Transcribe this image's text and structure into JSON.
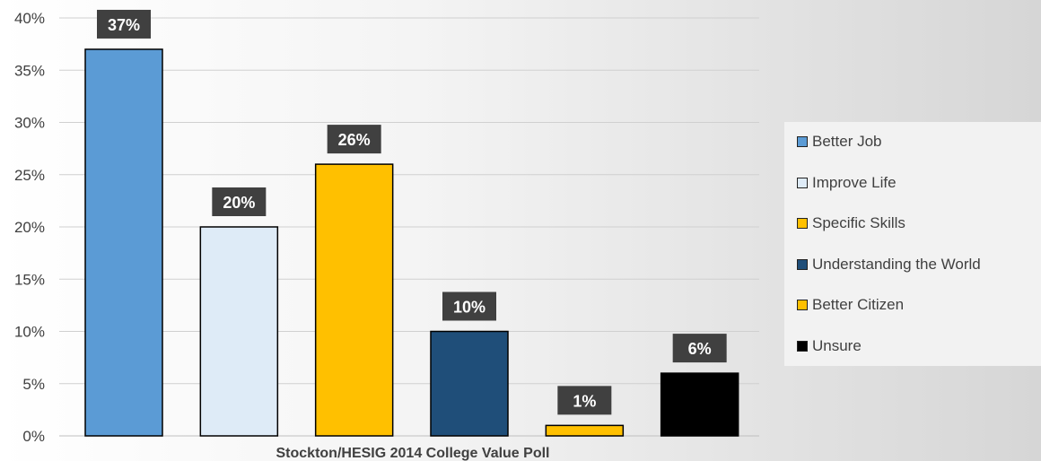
{
  "chart_data": {
    "type": "bar",
    "title": "",
    "xlabel": "Stockton/HESIG 2014 College Value Poll",
    "ylabel": "",
    "ylim": [
      0,
      40
    ],
    "y_ticks": [
      "0%",
      "5%",
      "10%",
      "15%",
      "20%",
      "25%",
      "30%",
      "35%",
      "40%"
    ],
    "grid": true,
    "legend_position": "right",
    "series": [
      {
        "name": "Better Job",
        "value": 37,
        "label": "37%",
        "color": "#5B9BD5"
      },
      {
        "name": "Improve Life",
        "value": 20,
        "label": "20%",
        "color": "#DEEBF7"
      },
      {
        "name": "Specific Skills",
        "value": 26,
        "label": "26%",
        "color": "#FFC000"
      },
      {
        "name": "Understanding the World",
        "value": 10,
        "label": "10%",
        "color": "#1F4E79"
      },
      {
        "name": "Better Citizen",
        "value": 1,
        "label": "1%",
        "color": "#FFC000"
      },
      {
        "name": "Unsure",
        "value": 6,
        "label": "6%",
        "color": "#000000"
      }
    ]
  }
}
